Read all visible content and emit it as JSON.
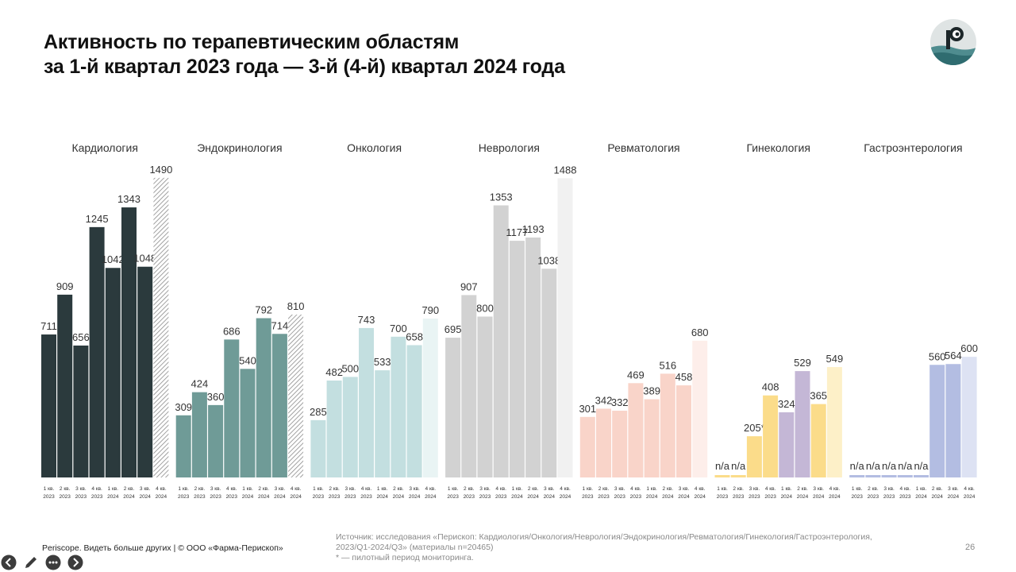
{
  "title": {
    "line1": "Активность по терапевтическим областям",
    "line2": "за 1-й квартал 2023 года — 3-й (4-й) квартал 2024 года"
  },
  "footer": {
    "brand": "Periscope. Видеть больше других | © ООО «Фарма-Перископ»",
    "source_line1": "Источник: исследования «Перископ: Кардиология/Онкология/Неврология/Эндокринология/Ревматология/Гинекология/Гастроэнтерология,",
    "source_line2": "2023/Q1-2024/Q3» (материалы n=20465)",
    "source_line3": "* — пилотный период мониторинга.",
    "page_number": "26"
  },
  "toolbar": {
    "icons": [
      "back-icon",
      "pen-icon",
      "more-icon",
      "forward-icon"
    ]
  },
  "colors": {
    "dark": "#2b3a3d",
    "teal": "#6f9b97",
    "light_teal": "#c3dfe0",
    "gray": "#d2d2d2",
    "peach": "#f9d4c9",
    "yellow": "#fbdc8a",
    "lavender": "#c4b7d6",
    "blue": "#b3bde2"
  },
  "chart_data": {
    "type": "bar",
    "x_tick_labels": [
      [
        "1 кв.",
        "2023"
      ],
      [
        "2 кв.",
        "2023"
      ],
      [
        "3 кв.",
        "2023"
      ],
      [
        "4 кв.",
        "2023"
      ],
      [
        "1 кв.",
        "2024"
      ],
      [
        "2 кв.",
        "2024"
      ],
      [
        "3 кв.",
        "2024"
      ],
      [
        "4 кв.",
        "2024"
      ]
    ],
    "ylim": [
      0,
      1600
    ],
    "grid": false,
    "groups": [
      {
        "name": "Кардиология",
        "values": [
          711,
          909,
          656,
          1245,
          1042,
          1343,
          1048,
          1490
        ],
        "labels": [
          "711",
          "909",
          "656",
          "1245",
          "1042",
          "1343",
          "1048",
          "1490"
        ],
        "colors": [
          "#2b3a3d",
          "#2b3a3d",
          "#2b3a3d",
          "#2b3a3d",
          "#2b3a3d",
          "#2b3a3d",
          "#2b3a3d",
          "hatch"
        ]
      },
      {
        "name": "Эндокринология",
        "values": [
          309,
          424,
          360,
          686,
          540,
          792,
          714,
          810
        ],
        "labels": [
          "309",
          "424",
          "360",
          "686",
          "540",
          "792",
          "714",
          "810"
        ],
        "colors": [
          "#6f9b97",
          "#6f9b97",
          "#6f9b97",
          "#6f9b97",
          "#6f9b97",
          "#6f9b97",
          "#6f9b97",
          "hatch"
        ]
      },
      {
        "name": "Онкология",
        "values": [
          285,
          482,
          500,
          743,
          533,
          700,
          658,
          790
        ],
        "labels": [
          "285",
          "482",
          "500",
          "743",
          "533",
          "700",
          "658",
          "790"
        ],
        "colors": [
          "#c3dfe0",
          "#c3dfe0",
          "#c3dfe0",
          "#c3dfe0",
          "#c3dfe0",
          "#c3dfe0",
          "#c3dfe0",
          "#e9f4f4"
        ]
      },
      {
        "name": "Неврология",
        "values": [
          695,
          907,
          800,
          1353,
          1177,
          1193,
          1038,
          1488
        ],
        "labels": [
          "695",
          "907",
          "800",
          "1353",
          "1177",
          "1193",
          "1038",
          "1488"
        ],
        "colors": [
          "#d2d2d2",
          "#d2d2d2",
          "#d2d2d2",
          "#d2d2d2",
          "#d2d2d2",
          "#d2d2d2",
          "#d2d2d2",
          "#f1f1f1"
        ]
      },
      {
        "name": "Ревматология",
        "values": [
          301,
          342,
          332,
          469,
          389,
          516,
          458,
          680
        ],
        "labels": [
          "301",
          "342",
          "332",
          "469",
          "389",
          "516",
          "458",
          "680"
        ],
        "colors": [
          "#f9d4c9",
          "#f9d4c9",
          "#f9d4c9",
          "#f9d4c9",
          "#f9d4c9",
          "#f9d4c9",
          "#f9d4c9",
          "#fdeeea"
        ]
      },
      {
        "name": "Гинекология",
        "values": [
          0,
          0,
          205,
          408,
          324,
          529,
          365,
          549
        ],
        "labels": [
          "n/a",
          "n/a",
          "205*",
          "408",
          "324",
          "529",
          "365",
          "549"
        ],
        "colors": [
          "#fbdc8a",
          "#fbdc8a",
          "#fbdc8a",
          "#fbdc8a",
          "#c4b7d6",
          "#c4b7d6",
          "#fbdc8a",
          "#fdf0c8"
        ]
      },
      {
        "name": "Гастроэнтерология",
        "values": [
          0,
          0,
          0,
          0,
          0,
          560,
          564,
          600
        ],
        "labels": [
          "n/a",
          "n/a",
          "n/a",
          "n/a",
          "n/a",
          "560",
          "564",
          "600"
        ],
        "colors": [
          "#b3bde2",
          "#b3bde2",
          "#b3bde2",
          "#b3bde2",
          "#b3bde2",
          "#b3bde2",
          "#b3bde2",
          "#dde2f3"
        ]
      }
    ]
  }
}
